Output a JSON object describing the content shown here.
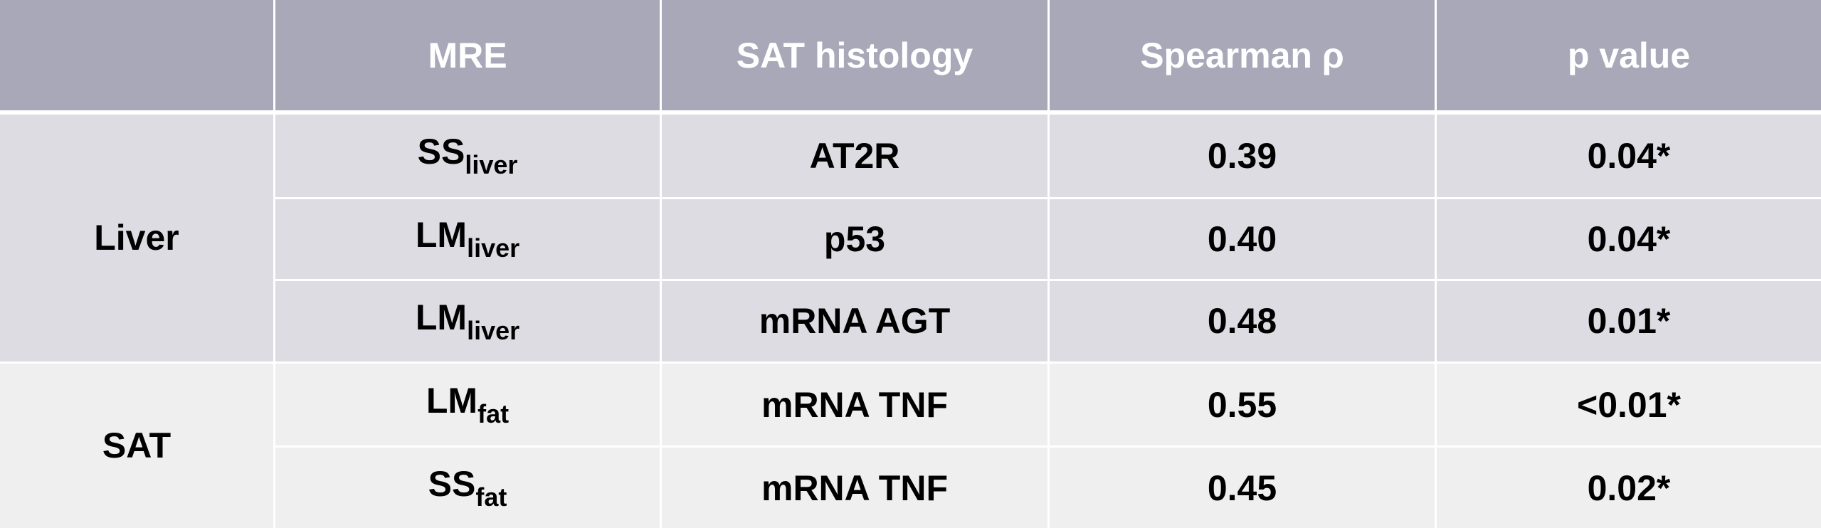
{
  "table": {
    "header": [
      "",
      "MRE",
      "SAT histology",
      "Spearman ρ",
      "p value"
    ],
    "groups": [
      {
        "label": "Liver",
        "rows": [
          {
            "mre": {
              "base": "SS",
              "sub": "liver"
            },
            "histology": "AT2R",
            "rho": "0.39",
            "p": "0.04*"
          },
          {
            "mre": {
              "base": "LM",
              "sub": "liver"
            },
            "histology": "p53",
            "rho": "0.40",
            "p": "0.04*"
          },
          {
            "mre": {
              "base": "LM",
              "sub": "liver"
            },
            "histology": "mRNA AGT",
            "rho": "0.48",
            "p": "0.01*"
          }
        ]
      },
      {
        "label": "SAT",
        "rows": [
          {
            "mre": {
              "base": "LM",
              "sub": "fat"
            },
            "histology": "mRNA TNF",
            "rho": "0.55",
            "p": "<0.01*"
          },
          {
            "mre": {
              "base": "SS",
              "sub": "fat"
            },
            "histology": "mRNA TNF",
            "rho": "0.45",
            "p": "0.02*"
          }
        ]
      }
    ]
  }
}
